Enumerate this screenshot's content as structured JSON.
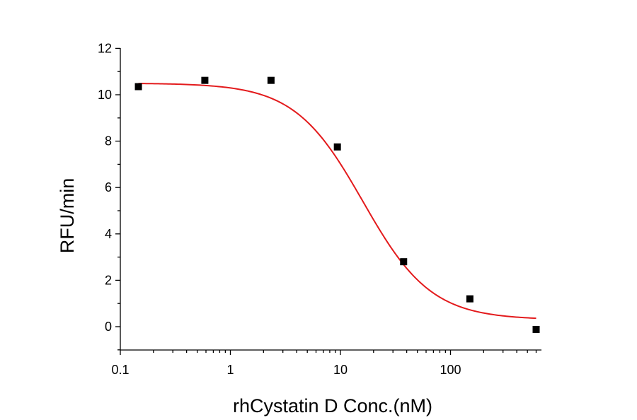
{
  "chart_data": {
    "type": "scatter",
    "x_scale": "log",
    "xlabel": "rhCystatin D Conc.(nM)",
    "ylabel": "RFU/min",
    "xlim": [
      0.1,
      600
    ],
    "ylim": [
      -1,
      12
    ],
    "x_ticks": [
      {
        "value": 0.1,
        "label": "0.1"
      },
      {
        "value": 1,
        "label": "1"
      },
      {
        "value": 10,
        "label": "10"
      },
      {
        "value": 100,
        "label": "100"
      }
    ],
    "y_ticks": [
      {
        "value": 0,
        "label": "0"
      },
      {
        "value": 2,
        "label": "2"
      },
      {
        "value": 4,
        "label": "4"
      },
      {
        "value": 6,
        "label": "6"
      },
      {
        "value": 8,
        "label": "8"
      },
      {
        "value": 10,
        "label": "10"
      },
      {
        "value": 12,
        "label": "12"
      }
    ],
    "points": {
      "x": [
        0.146,
        0.586,
        2.34,
        9.38,
        37.5,
        150,
        600
      ],
      "y": [
        10.35,
        10.62,
        10.62,
        7.75,
        2.8,
        1.2,
        -0.12
      ],
      "color": "#000000",
      "marker": "square"
    },
    "fit": {
      "type": "logistic",
      "color": "#e31a1c",
      "top": 10.5,
      "bottom": 0.3,
      "ec50": 16,
      "hill": 1.4
    },
    "grid": false,
    "legend": "none"
  }
}
